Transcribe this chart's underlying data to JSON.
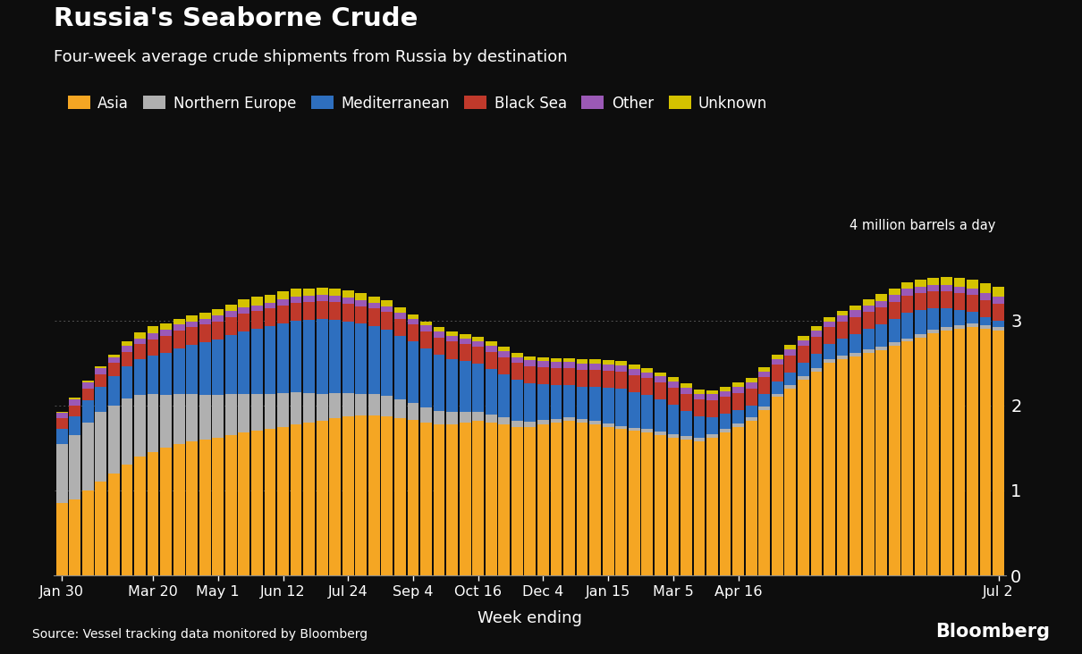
{
  "title": "Russia's Seaborne Crude",
  "subtitle": "Four-week average crude shipments from Russia by destination",
  "ylabel": "4 million barrels a day",
  "xlabel": "Week ending",
  "source": "Source: Vessel tracking data monitored by Bloomberg",
  "background_color": "#0d0d0d",
  "text_color": "#ffffff",
  "ylim": [
    0,
    4
  ],
  "yticks": [
    0,
    1,
    2,
    3
  ],
  "categories": [
    "Asia",
    "Northern Europe",
    "Mediterranean",
    "Black Sea",
    "Other",
    "Unknown"
  ],
  "colors": [
    "#F5A623",
    "#B0B0B0",
    "#2E6FBF",
    "#C0392B",
    "#9B59B6",
    "#D4C200"
  ],
  "tick_labels": [
    "Jan 30",
    "Mar 20",
    "May 1",
    "Jun 12",
    "Jul 24",
    "Sep 4",
    "Oct 16",
    "Dec 4",
    "Jan 15",
    "Mar 5",
    "Apr 16",
    "Jul 2"
  ],
  "tick_positions": [
    0,
    7,
    12,
    17,
    22,
    27,
    32,
    37,
    42,
    47,
    52,
    72
  ],
  "data": {
    "Asia": [
      0.85,
      0.9,
      1.0,
      1.1,
      1.2,
      1.3,
      1.4,
      1.45,
      1.5,
      1.55,
      1.58,
      1.6,
      1.62,
      1.65,
      1.68,
      1.7,
      1.72,
      1.75,
      1.78,
      1.8,
      1.82,
      1.85,
      1.87,
      1.88,
      1.88,
      1.87,
      1.85,
      1.83,
      1.8,
      1.78,
      1.78,
      1.8,
      1.82,
      1.8,
      1.78,
      1.75,
      1.75,
      1.78,
      1.8,
      1.82,
      1.8,
      1.78,
      1.75,
      1.72,
      1.7,
      1.68,
      1.65,
      1.62,
      1.6,
      1.58,
      1.62,
      1.68,
      1.75,
      1.82,
      1.95,
      2.1,
      2.2,
      2.3,
      2.4,
      2.5,
      2.55,
      2.58,
      2.62,
      2.65,
      2.7,
      2.75,
      2.8,
      2.85,
      2.88,
      2.9,
      2.92,
      2.9,
      2.88
    ],
    "Northern Europe": [
      0.7,
      0.75,
      0.8,
      0.82,
      0.8,
      0.78,
      0.72,
      0.68,
      0.62,
      0.58,
      0.55,
      0.52,
      0.5,
      0.48,
      0.46,
      0.44,
      0.42,
      0.4,
      0.38,
      0.35,
      0.32,
      0.3,
      0.28,
      0.26,
      0.25,
      0.24,
      0.22,
      0.2,
      0.18,
      0.16,
      0.14,
      0.12,
      0.1,
      0.09,
      0.08,
      0.07,
      0.06,
      0.05,
      0.04,
      0.04,
      0.04,
      0.04,
      0.04,
      0.04,
      0.04,
      0.04,
      0.04,
      0.04,
      0.04,
      0.04,
      0.04,
      0.04,
      0.04,
      0.04,
      0.04,
      0.04,
      0.04,
      0.04,
      0.04,
      0.04,
      0.04,
      0.04,
      0.04,
      0.04,
      0.04,
      0.04,
      0.04,
      0.04,
      0.04,
      0.04,
      0.04,
      0.04,
      0.04
    ],
    "Mediterranean": [
      0.18,
      0.22,
      0.26,
      0.3,
      0.34,
      0.38,
      0.42,
      0.46,
      0.5,
      0.54,
      0.58,
      0.62,
      0.66,
      0.7,
      0.73,
      0.76,
      0.79,
      0.82,
      0.84,
      0.86,
      0.88,
      0.86,
      0.84,
      0.82,
      0.8,
      0.78,
      0.75,
      0.72,
      0.69,
      0.66,
      0.63,
      0.6,
      0.57,
      0.54,
      0.51,
      0.48,
      0.45,
      0.42,
      0.4,
      0.38,
      0.38,
      0.4,
      0.42,
      0.44,
      0.42,
      0.4,
      0.38,
      0.35,
      0.3,
      0.25,
      0.2,
      0.18,
      0.16,
      0.14,
      0.14,
      0.14,
      0.15,
      0.16,
      0.17,
      0.18,
      0.2,
      0.22,
      0.24,
      0.26,
      0.28,
      0.3,
      0.28,
      0.25,
      0.22,
      0.18,
      0.14,
      0.1,
      0.08
    ],
    "Black Sea": [
      0.12,
      0.13,
      0.14,
      0.15,
      0.16,
      0.17,
      0.18,
      0.19,
      0.2,
      0.21,
      0.21,
      0.21,
      0.21,
      0.21,
      0.21,
      0.21,
      0.21,
      0.21,
      0.21,
      0.21,
      0.21,
      0.21,
      0.21,
      0.21,
      0.21,
      0.21,
      0.2,
      0.2,
      0.2,
      0.2,
      0.2,
      0.2,
      0.2,
      0.2,
      0.2,
      0.2,
      0.2,
      0.2,
      0.2,
      0.2,
      0.2,
      0.2,
      0.2,
      0.2,
      0.2,
      0.2,
      0.2,
      0.2,
      0.2,
      0.2,
      0.2,
      0.2,
      0.2,
      0.2,
      0.2,
      0.2,
      0.2,
      0.2,
      0.2,
      0.2,
      0.2,
      0.2,
      0.2,
      0.2,
      0.2,
      0.2,
      0.2,
      0.2,
      0.2,
      0.2,
      0.2,
      0.2,
      0.2
    ],
    "Other": [
      0.06,
      0.07,
      0.07,
      0.07,
      0.07,
      0.07,
      0.07,
      0.07,
      0.07,
      0.07,
      0.07,
      0.07,
      0.07,
      0.07,
      0.07,
      0.07,
      0.07,
      0.07,
      0.07,
      0.07,
      0.07,
      0.07,
      0.07,
      0.07,
      0.07,
      0.07,
      0.07,
      0.07,
      0.07,
      0.07,
      0.07,
      0.07,
      0.07,
      0.07,
      0.07,
      0.07,
      0.07,
      0.07,
      0.07,
      0.07,
      0.07,
      0.07,
      0.07,
      0.07,
      0.07,
      0.07,
      0.07,
      0.07,
      0.07,
      0.07,
      0.07,
      0.07,
      0.07,
      0.07,
      0.07,
      0.07,
      0.07,
      0.07,
      0.07,
      0.07,
      0.07,
      0.08,
      0.08,
      0.08,
      0.08,
      0.08,
      0.08,
      0.08,
      0.08,
      0.08,
      0.08,
      0.08,
      0.08
    ],
    "Unknown": [
      0.02,
      0.02,
      0.02,
      0.02,
      0.03,
      0.05,
      0.07,
      0.08,
      0.08,
      0.07,
      0.07,
      0.07,
      0.07,
      0.08,
      0.1,
      0.1,
      0.09,
      0.09,
      0.09,
      0.09,
      0.09,
      0.08,
      0.08,
      0.08,
      0.07,
      0.07,
      0.06,
      0.05,
      0.05,
      0.05,
      0.05,
      0.05,
      0.05,
      0.05,
      0.05,
      0.05,
      0.05,
      0.05,
      0.05,
      0.05,
      0.05,
      0.05,
      0.05,
      0.05,
      0.05,
      0.05,
      0.05,
      0.05,
      0.05,
      0.05,
      0.05,
      0.05,
      0.05,
      0.05,
      0.05,
      0.05,
      0.05,
      0.05,
      0.05,
      0.05,
      0.05,
      0.06,
      0.07,
      0.08,
      0.08,
      0.08,
      0.08,
      0.08,
      0.09,
      0.1,
      0.1,
      0.12,
      0.12
    ]
  }
}
